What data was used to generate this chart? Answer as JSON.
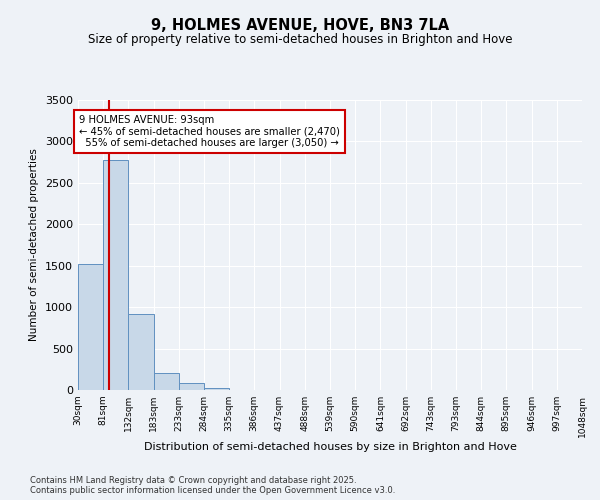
{
  "title": "9, HOLMES AVENUE, HOVE, BN3 7LA",
  "subtitle": "Size of property relative to semi-detached houses in Brighton and Hove",
  "xlabel": "Distribution of semi-detached houses by size in Brighton and Hove",
  "ylabel": "Number of semi-detached properties",
  "bin_labels": [
    "30sqm",
    "81sqm",
    "132sqm",
    "183sqm",
    "233sqm",
    "284sqm",
    "335sqm",
    "386sqm",
    "437sqm",
    "488sqm",
    "539sqm",
    "590sqm",
    "641sqm",
    "692sqm",
    "743sqm",
    "793sqm",
    "844sqm",
    "895sqm",
    "946sqm",
    "997sqm",
    "1048sqm"
  ],
  "bin_edges": [
    30,
    81,
    132,
    183,
    233,
    284,
    335,
    386,
    437,
    488,
    539,
    590,
    641,
    692,
    743,
    793,
    844,
    895,
    946,
    997,
    1048
  ],
  "bar_values": [
    1520,
    2780,
    920,
    200,
    80,
    30,
    0,
    0,
    0,
    0,
    0,
    0,
    0,
    0,
    0,
    0,
    0,
    0,
    0,
    0
  ],
  "bar_color": "#c8d8e8",
  "bar_edge_color": "#6090c0",
  "property_sqm": 93,
  "property_label": "9 HOLMES AVENUE: 93sqm",
  "pct_smaller": 45,
  "n_smaller": 2470,
  "pct_larger": 55,
  "n_larger": 3050,
  "vline_color": "#cc0000",
  "annotation_box_color": "#cc0000",
  "ylim": [
    0,
    3500
  ],
  "yticks": [
    0,
    500,
    1000,
    1500,
    2000,
    2500,
    3000,
    3500
  ],
  "background_color": "#eef2f7",
  "grid_color": "#ffffff",
  "footer_line1": "Contains HM Land Registry data © Crown copyright and database right 2025.",
  "footer_line2": "Contains public sector information licensed under the Open Government Licence v3.0."
}
